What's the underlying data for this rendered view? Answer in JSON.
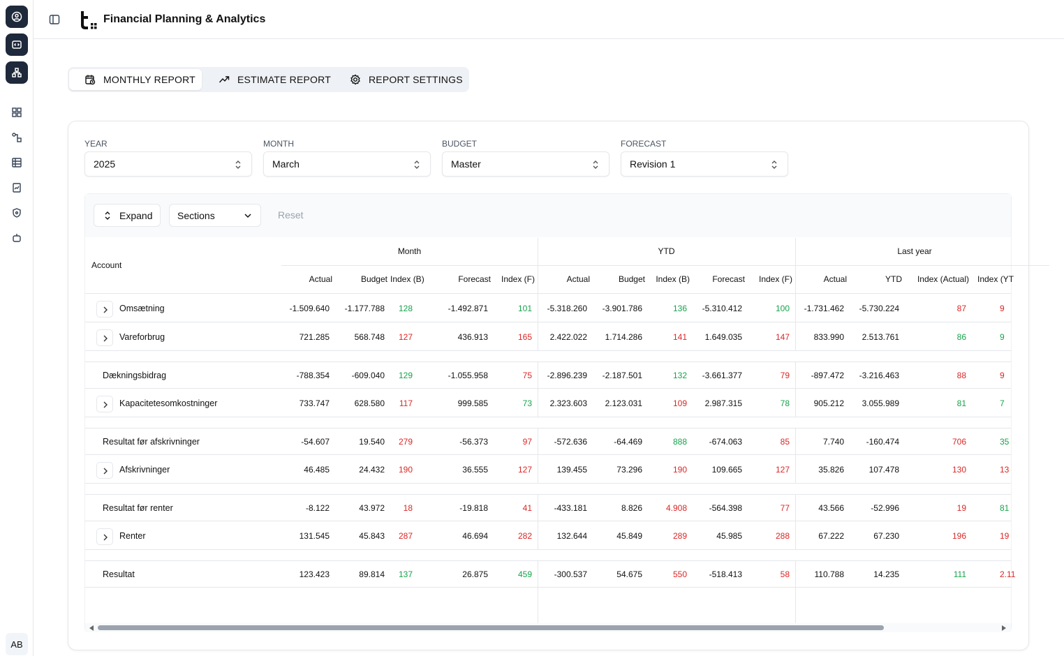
{
  "header": {
    "title": "Financial Planning & Analytics",
    "avatar": "AB"
  },
  "tabs": [
    "MONTHLY REPORT",
    "ESTIMATE REPORT",
    "REPORT SETTINGS"
  ],
  "filters": [
    {
      "label": "YEAR",
      "value": "2025"
    },
    {
      "label": "MONTH",
      "value": "March"
    },
    {
      "label": "BUDGET",
      "value": "Master"
    },
    {
      "label": "FORECAST",
      "value": "Revision 1"
    }
  ],
  "toolbar": {
    "expand": "Expand",
    "sections": "Sections",
    "reset": "Reset"
  },
  "table": {
    "account_header": "Account",
    "groups": [
      "Month",
      "YTD",
      "Last year"
    ],
    "columns": [
      "Actual",
      "Budget",
      "Index (B)",
      "Forecast",
      "Index (F)",
      "Actual",
      "Budget",
      "Index (B)",
      "Forecast",
      "Index (F)",
      "Actual",
      "YTD",
      "Index (Actual)",
      "Index (YT"
    ],
    "rows": [
      {
        "label": "Omsætning",
        "expandable": true,
        "cells": [
          "-1.509.640",
          "-1.177.788",
          {
            "text": "128",
            "color": "green"
          },
          "-1.492.871",
          {
            "text": "101",
            "color": "green"
          },
          "-5.318.260",
          "-3.901.786",
          {
            "text": "136",
            "color": "green"
          },
          "-5.310.412",
          {
            "text": "100",
            "color": "green"
          },
          "-1.731.462",
          "-5.730.224",
          {
            "text": "87",
            "color": "red"
          },
          {
            "text": "9",
            "color": "red"
          }
        ]
      },
      {
        "label": "Vareforbrug",
        "expandable": true,
        "cells": [
          "721.285",
          "568.748",
          {
            "text": "127",
            "color": "red"
          },
          "436.913",
          {
            "text": "165",
            "color": "red"
          },
          "2.422.022",
          "1.714.286",
          {
            "text": "141",
            "color": "red"
          },
          "1.649.035",
          {
            "text": "147",
            "color": "red"
          },
          "833.990",
          "2.513.761",
          {
            "text": "86",
            "color": "green"
          },
          {
            "text": "9",
            "color": "green"
          }
        ]
      },
      {
        "label": "Dækningsbidrag",
        "expandable": false,
        "cells": [
          "-788.354",
          "-609.040",
          {
            "text": "129",
            "color": "green"
          },
          "-1.055.958",
          {
            "text": "75",
            "color": "red"
          },
          "-2.896.239",
          "-2.187.501",
          {
            "text": "132",
            "color": "green"
          },
          "-3.661.377",
          {
            "text": "79",
            "color": "red"
          },
          "-897.472",
          "-3.216.463",
          {
            "text": "88",
            "color": "red"
          },
          {
            "text": "9",
            "color": "red"
          }
        ]
      },
      {
        "label": "Kapacitetesomkostninger",
        "expandable": true,
        "cells": [
          "733.747",
          "628.580",
          {
            "text": "117",
            "color": "red"
          },
          "999.585",
          {
            "text": "73",
            "color": "green"
          },
          "2.323.603",
          "2.123.031",
          {
            "text": "109",
            "color": "red"
          },
          "2.987.315",
          {
            "text": "78",
            "color": "green"
          },
          "905.212",
          "3.055.989",
          {
            "text": "81",
            "color": "green"
          },
          {
            "text": "7",
            "color": "green"
          }
        ]
      },
      {
        "label": "Resultat før afskrivninger",
        "expandable": false,
        "cells": [
          "-54.607",
          "19.540",
          {
            "text": "279",
            "color": "red"
          },
          "-56.373",
          {
            "text": "97",
            "color": "red"
          },
          "-572.636",
          "-64.469",
          {
            "text": "888",
            "color": "green"
          },
          "-674.063",
          {
            "text": "85",
            "color": "red"
          },
          "7.740",
          "-160.474",
          {
            "text": "706",
            "color": "red"
          },
          {
            "text": "35",
            "color": "green"
          }
        ]
      },
      {
        "label": "Afskrivninger",
        "expandable": true,
        "cells": [
          "46.485",
          "24.432",
          {
            "text": "190",
            "color": "red"
          },
          "36.555",
          {
            "text": "127",
            "color": "red"
          },
          "139.455",
          "73.296",
          {
            "text": "190",
            "color": "red"
          },
          "109.665",
          {
            "text": "127",
            "color": "red"
          },
          "35.826",
          "107.478",
          {
            "text": "130",
            "color": "red"
          },
          {
            "text": "13",
            "color": "red"
          }
        ]
      },
      {
        "label": "Resultat før renter",
        "expandable": false,
        "cells": [
          "-8.122",
          "43.972",
          {
            "text": "18",
            "color": "red"
          },
          "-19.818",
          {
            "text": "41",
            "color": "red"
          },
          "-433.181",
          "8.826",
          {
            "text": "4.908",
            "color": "red"
          },
          "-564.398",
          {
            "text": "77",
            "color": "red"
          },
          "43.566",
          "-52.996",
          {
            "text": "19",
            "color": "red"
          },
          {
            "text": "81",
            "color": "green"
          }
        ]
      },
      {
        "label": "Renter",
        "expandable": true,
        "cells": [
          "131.545",
          "45.843",
          {
            "text": "287",
            "color": "red"
          },
          "46.694",
          {
            "text": "282",
            "color": "red"
          },
          "132.644",
          "45.849",
          {
            "text": "289",
            "color": "red"
          },
          "45.985",
          {
            "text": "288",
            "color": "red"
          },
          "67.222",
          "67.230",
          {
            "text": "196",
            "color": "red"
          },
          {
            "text": "19",
            "color": "red"
          }
        ]
      },
      {
        "label": "Resultat",
        "expandable": false,
        "cells": [
          "123.423",
          "89.814",
          {
            "text": "137",
            "color": "green"
          },
          "26.875",
          {
            "text": "459",
            "color": "green"
          },
          "-300.537",
          "54.675",
          {
            "text": "550",
            "color": "red"
          },
          "-518.413",
          {
            "text": "58",
            "color": "red"
          },
          "110.788",
          "14.235",
          {
            "text": "111",
            "color": "green"
          },
          {
            "text": "2.11",
            "color": "red"
          }
        ]
      }
    ]
  }
}
